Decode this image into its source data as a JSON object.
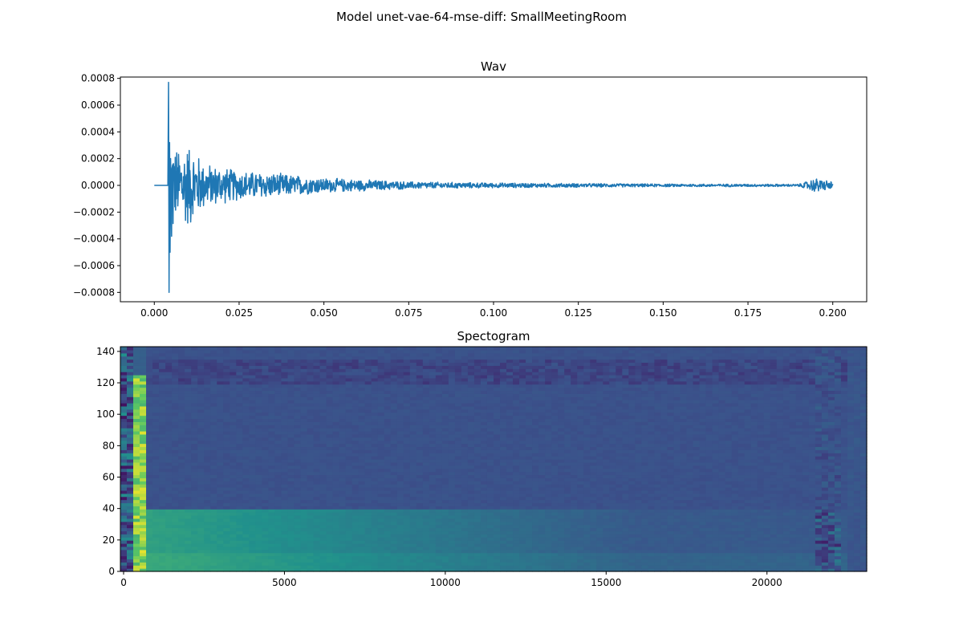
{
  "figure": {
    "suptitle": "Model unet-vae-64-mse-diff: SmallMeetingRoom"
  },
  "chart_data": [
    {
      "type": "line",
      "title": "Wav",
      "xlabel": "",
      "ylabel": "",
      "xlim": [
        -0.01,
        0.21
      ],
      "ylim": [
        -0.00087,
        0.00081
      ],
      "xticks": [
        0.0,
        0.025,
        0.05,
        0.075,
        0.1,
        0.125,
        0.15,
        0.175,
        0.2
      ],
      "xtick_labels": [
        "0.000",
        "0.025",
        "0.050",
        "0.075",
        "0.100",
        "0.125",
        "0.150",
        "0.175",
        "0.200"
      ],
      "yticks": [
        -0.0008,
        -0.0006,
        -0.0004,
        -0.0002,
        0.0,
        0.0002,
        0.0004,
        0.0006,
        0.0008
      ],
      "ytick_labels": [
        "−0.0008",
        "−0.0006",
        "−0.0004",
        "−0.0002",
        "0.0000",
        "0.0002",
        "0.0004",
        "0.0006",
        "0.0008"
      ],
      "grid": false,
      "color": "#1f77b4",
      "series": [
        {
          "onset": 0.0042,
          "end": 0.2,
          "peak_max": 0.00077,
          "peak_min": -0.0008,
          "envelope": [
            [
              0.0,
              0.0
            ],
            [
              0.004,
              0.0
            ],
            [
              0.0042,
              0.00077
            ],
            [
              0.0045,
              -0.0008
            ],
            [
              0.006,
              0.0003
            ],
            [
              0.01,
              0.00034
            ],
            [
              0.015,
              0.00018
            ],
            [
              0.025,
              0.00012
            ],
            [
              0.035,
              0.0001
            ],
            [
              0.05,
              6e-05
            ],
            [
              0.075,
              3e-05
            ],
            [
              0.1,
              2e-05
            ],
            [
              0.15,
              1.2e-05
            ],
            [
              0.19,
              1e-05
            ],
            [
              0.195,
              6e-05
            ],
            [
              0.2,
              3e-05
            ]
          ]
        }
      ]
    },
    {
      "type": "heatmap",
      "title": "Spectogram",
      "xlabel": "",
      "ylabel": "",
      "xlim": [
        -100,
        23100
      ],
      "ylim": [
        0,
        143
      ],
      "xticks": [
        0,
        5000,
        10000,
        15000,
        20000
      ],
      "xtick_labels": [
        "0",
        "5000",
        "10000",
        "15000",
        "20000"
      ],
      "yticks": [
        0,
        20,
        40,
        60,
        80,
        100,
        120,
        140
      ],
      "ytick_labels": [
        "0",
        "20",
        "40",
        "60",
        "80",
        "100",
        "120",
        "140"
      ],
      "colormap": "viridis",
      "colors": [
        "#440154",
        "#3b528b",
        "#21918c",
        "#5ec962",
        "#fde725"
      ],
      "features": {
        "low_band_top_bin": 40,
        "low_band_fade_x": 16000,
        "onset_column_x": 450,
        "tail_column_x": 21500,
        "high_noise_bins": [
          120,
          135
        ]
      }
    }
  ]
}
